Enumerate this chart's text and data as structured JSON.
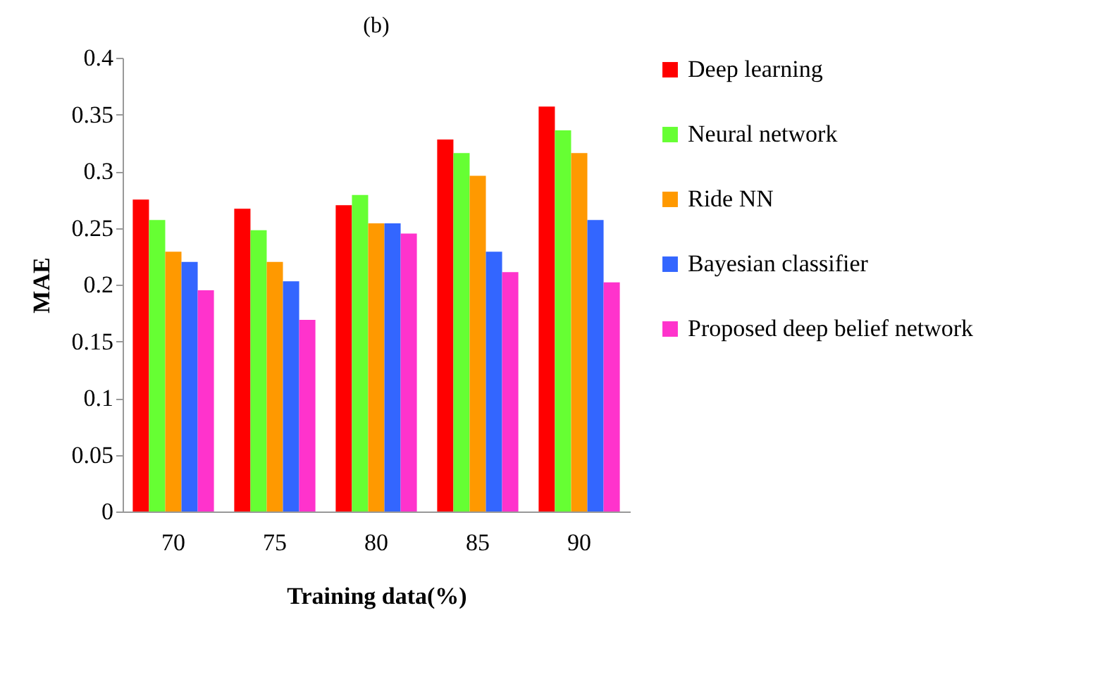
{
  "chart_data": {
    "type": "bar",
    "title": "(b)",
    "xlabel": "Training data(%)",
    "ylabel": "MAE",
    "categories": [
      "70",
      "75",
      "80",
      "85",
      "90"
    ],
    "series": [
      {
        "name": "Deep learning",
        "color": "#ff0000",
        "values": [
          0.275,
          0.267,
          0.27,
          0.328,
          0.357
        ]
      },
      {
        "name": "Neural network",
        "color": "#66ff33",
        "values": [
          0.257,
          0.248,
          0.279,
          0.316,
          0.336
        ]
      },
      {
        "name": "Ride NN",
        "color": "#ff9900",
        "values": [
          0.229,
          0.22,
          0.254,
          0.296,
          0.316
        ]
      },
      {
        "name": "Bayesian classifier",
        "color": "#3366ff",
        "values": [
          0.22,
          0.203,
          0.254,
          0.229,
          0.257
        ]
      },
      {
        "name": "Proposed deep belief network",
        "color": "#ff33cc",
        "values": [
          0.195,
          0.169,
          0.245,
          0.211,
          0.202
        ]
      }
    ],
    "ylim": [
      0,
      0.4
    ],
    "yticks": [
      0,
      0.05,
      0.1,
      0.15,
      0.2,
      0.25,
      0.3,
      0.35,
      0.4
    ],
    "grid": false,
    "legend": "right"
  }
}
